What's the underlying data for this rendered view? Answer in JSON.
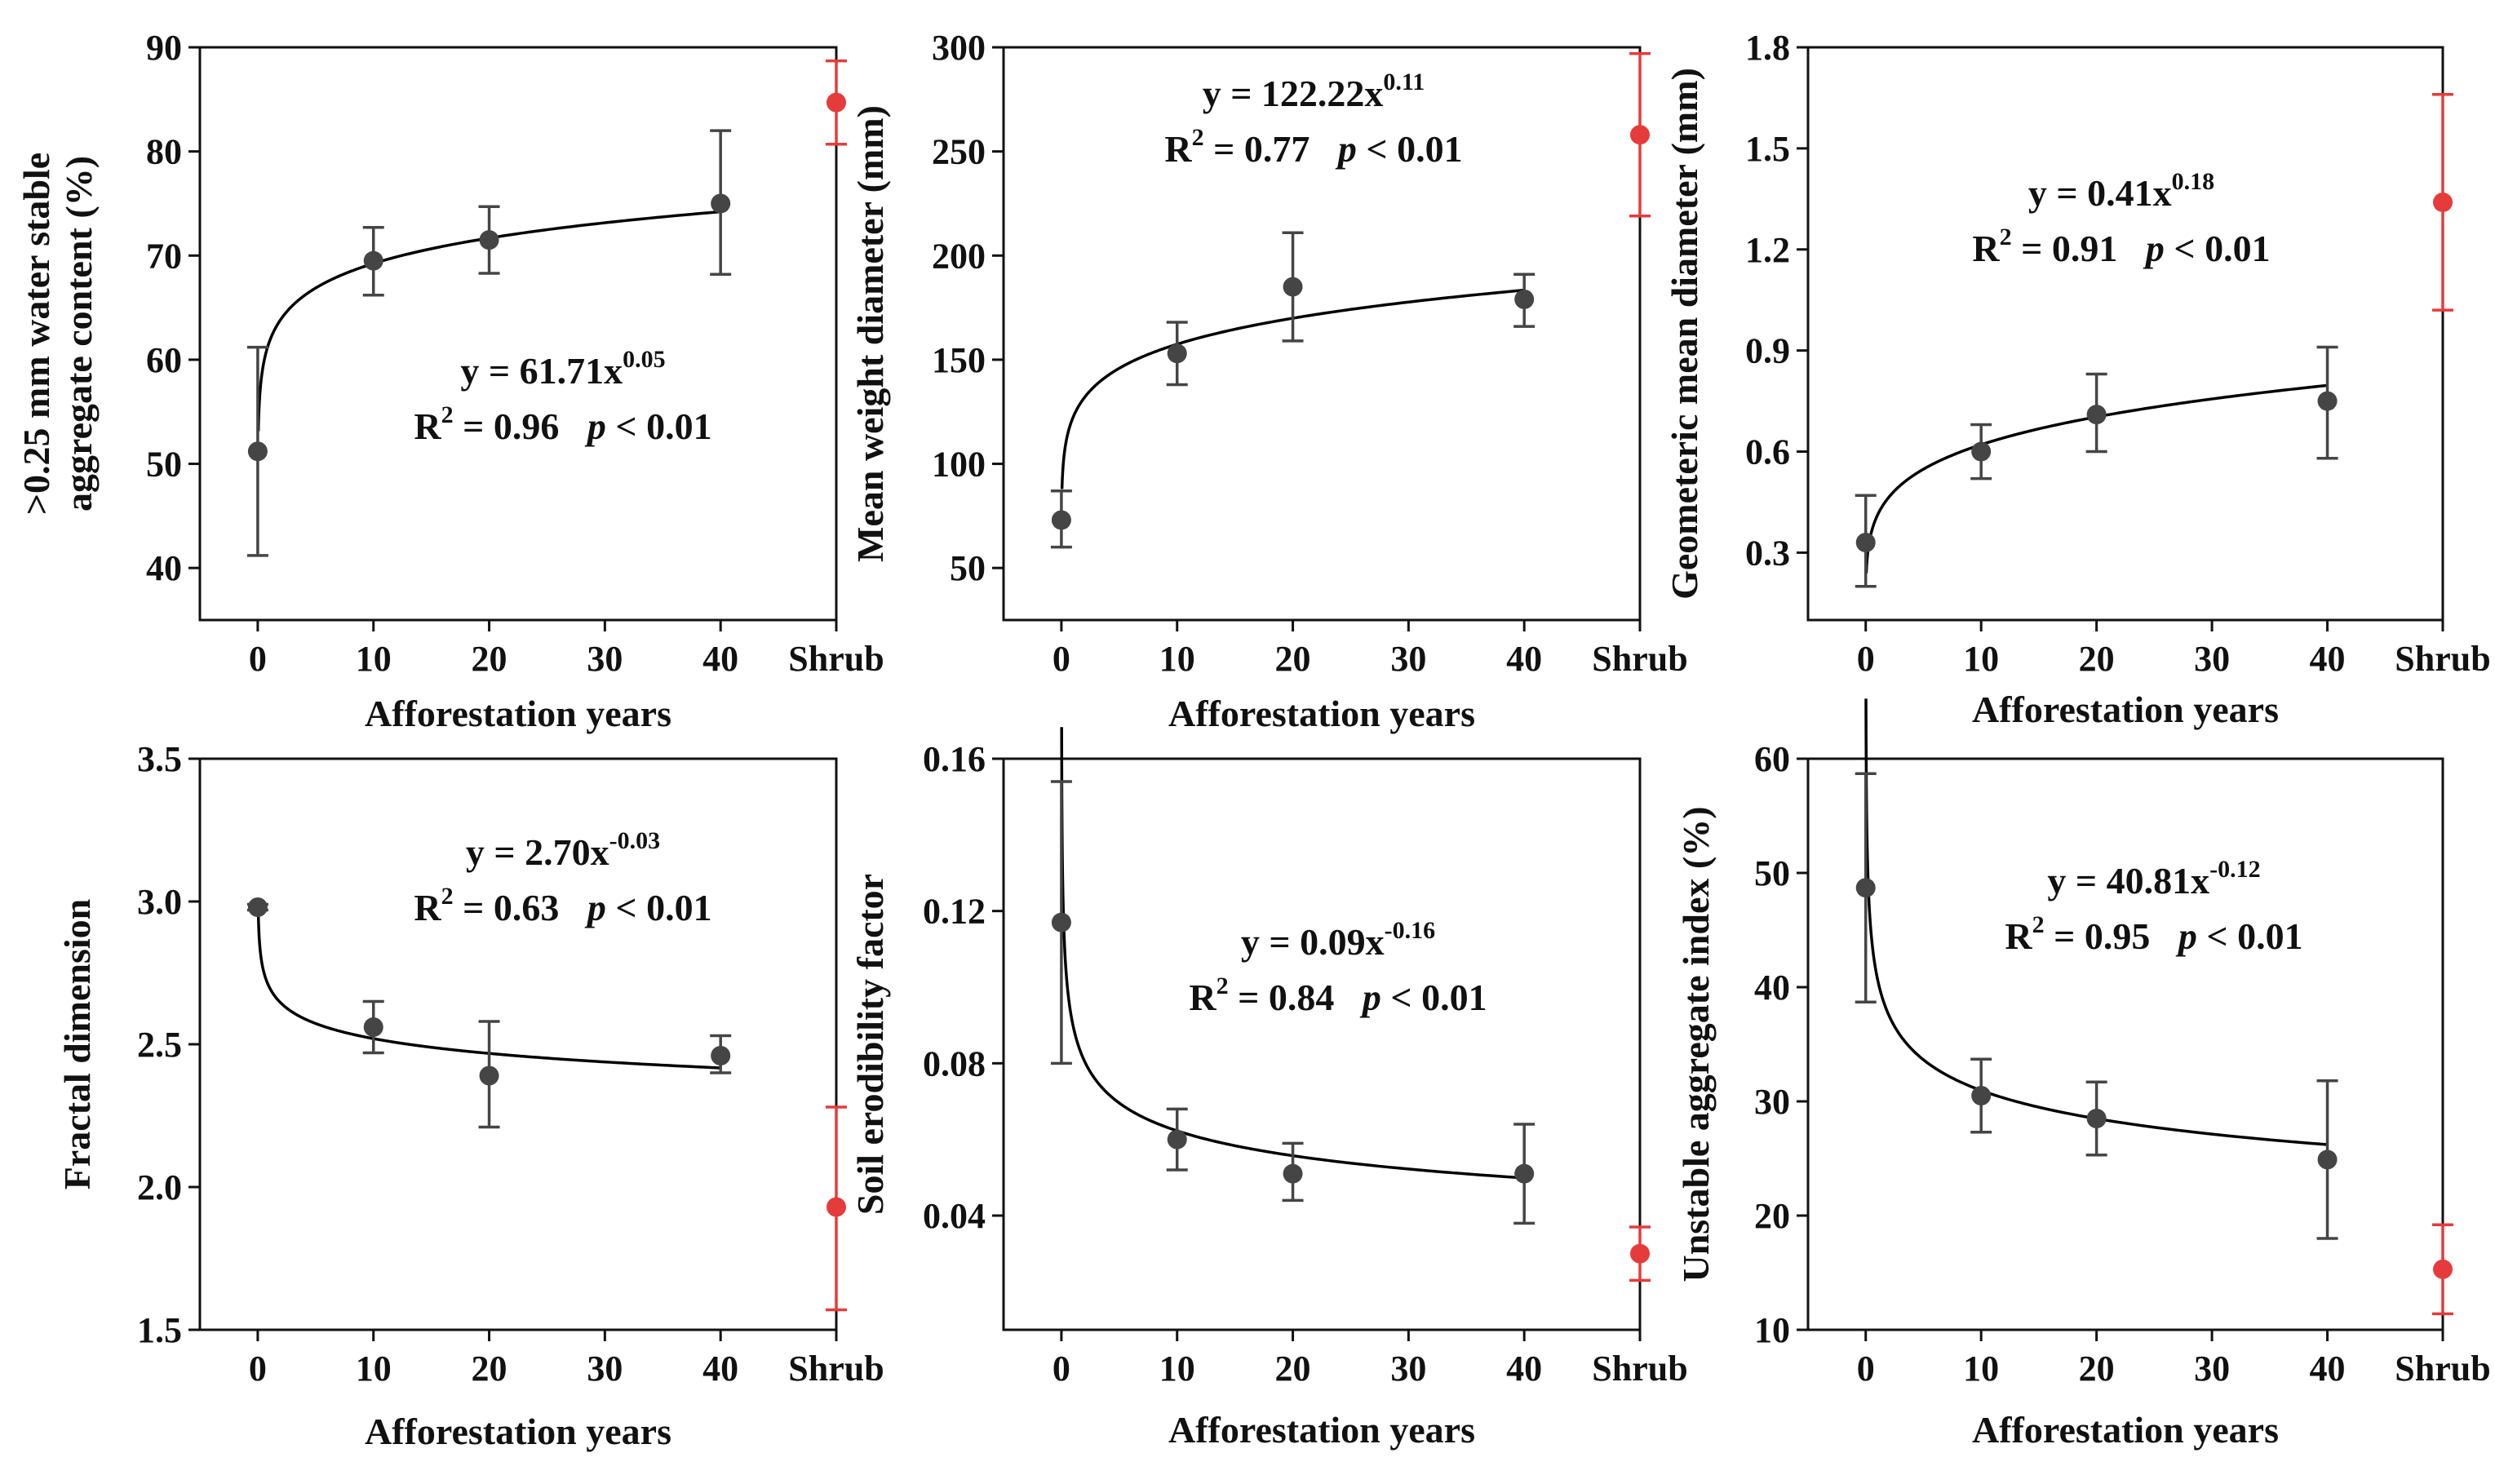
{
  "colors": {
    "afforestation": "#454545",
    "shrub": "#e63b3b",
    "curve": "#000000",
    "axis": "#111111"
  },
  "chart_data": [
    {
      "type": "scatter",
      "id": "wsa",
      "xlabel": "Afforestation years",
      "ylabel_lines": [
        ">0.25 mm water stable",
        "aggregate content (%)"
      ],
      "x_tick_labels": [
        "0",
        "10",
        "20",
        "30",
        "40",
        "Shrub"
      ],
      "xlim": [
        -5,
        50
      ],
      "ylim": [
        35,
        90
      ],
      "yticks": [
        40,
        50,
        60,
        70,
        80,
        90
      ],
      "ytick_labels": [
        "40",
        "50",
        "60",
        "70",
        "80",
        "90"
      ],
      "points": [
        {
          "x": 0,
          "y": 51.2,
          "err_low": 41.2,
          "err_high": 61.2
        },
        {
          "x": 10,
          "y": 69.5,
          "err_low": 66.2,
          "err_high": 72.7
        },
        {
          "x": 20,
          "y": 71.5,
          "err_low": 68.3,
          "err_high": 74.7
        },
        {
          "x": 40,
          "y": 75.0,
          "err_low": 68.2,
          "err_high": 82.0
        }
      ],
      "shrub": {
        "label": "Shrub",
        "x": 50,
        "y": 84.7,
        "err_low": 80.7,
        "err_high": 88.7
      },
      "fit": {
        "a": 61.71,
        "b": 0.05,
        "x_start": 0.05,
        "x_end": 40
      },
      "equation": {
        "lhs": "y = 61.71x",
        "exp": "0.05",
        "r2_prefix": "R",
        "r2_exp": "2",
        "r2_value": " = 0.96",
        "p_label": "p",
        "p_value": " < 0.01"
      }
    },
    {
      "type": "scatter",
      "id": "mwd",
      "xlabel": "Afforestation years",
      "ylabel_lines": [
        "Mean weight diameter (mm)"
      ],
      "x_tick_labels": [
        "0",
        "10",
        "20",
        "30",
        "40",
        "Shrub"
      ],
      "xlim": [
        -5,
        50
      ],
      "ylim": [
        25,
        300
      ],
      "yticks": [
        50,
        100,
        150,
        200,
        250,
        300
      ],
      "ytick_labels": [
        "50",
        "100",
        "150",
        "200",
        "250",
        "300"
      ],
      "points": [
        {
          "x": 0,
          "y": 73,
          "err_low": 60,
          "err_high": 87
        },
        {
          "x": 10,
          "y": 153,
          "err_low": 138,
          "err_high": 168
        },
        {
          "x": 20,
          "y": 185,
          "err_low": 159,
          "err_high": 211
        },
        {
          "x": 40,
          "y": 179,
          "err_low": 166,
          "err_high": 191
        }
      ],
      "shrub": {
        "label": "Shrub",
        "x": 50,
        "y": 258,
        "err_low": 219,
        "err_high": 297
      },
      "fit": {
        "a": 122.22,
        "b": 0.11,
        "x_start": 0.05,
        "x_end": 40
      },
      "equation": {
        "lhs": "y = 122.22x",
        "exp": "0.11",
        "r2_prefix": "R",
        "r2_exp": "2",
        "r2_value": " = 0.77",
        "p_label": "p",
        "p_value": " < 0.01"
      }
    },
    {
      "type": "scatter",
      "id": "gmd",
      "xlabel": "Afforestation years",
      "ylabel_lines": [
        "Geometeric mean diameter (mm)"
      ],
      "x_tick_labels": [
        "0",
        "10",
        "20",
        "30",
        "40",
        "Shrub"
      ],
      "xlim": [
        -5,
        50
      ],
      "ylim": [
        0.1,
        1.8
      ],
      "yticks": [
        0.3,
        0.6,
        0.9,
        1.2,
        1.5,
        1.8
      ],
      "ytick_labels": [
        "0.3",
        "0.6",
        "0.9",
        "1.2",
        "1.5",
        "1.8"
      ],
      "points": [
        {
          "x": 0,
          "y": 0.33,
          "err_low": 0.2,
          "err_high": 0.47
        },
        {
          "x": 10,
          "y": 0.6,
          "err_low": 0.52,
          "err_high": 0.68
        },
        {
          "x": 20,
          "y": 0.71,
          "err_low": 0.6,
          "err_high": 0.83
        },
        {
          "x": 40,
          "y": 0.75,
          "err_low": 0.58,
          "err_high": 0.91
        }
      ],
      "shrub": {
        "label": "Shrub",
        "x": 50,
        "y": 1.34,
        "err_low": 1.02,
        "err_high": 1.66
      },
      "fit": {
        "a": 0.41,
        "b": 0.18,
        "x_start": 0.05,
        "x_end": 40
      },
      "equation": {
        "lhs": "y = 0.41x",
        "exp": "0.18",
        "r2_prefix": "R",
        "r2_exp": "2",
        "r2_value": " = 0.91",
        "p_label": "p",
        "p_value": " < 0.01"
      }
    },
    {
      "type": "scatter",
      "id": "fd",
      "xlabel": "Afforestation years",
      "ylabel_lines": [
        "Fractal dimension"
      ],
      "x_tick_labels": [
        "0",
        "10",
        "20",
        "30",
        "40",
        "Shrub"
      ],
      "xlim": [
        -5,
        50
      ],
      "ylim": [
        1.5,
        3.5
      ],
      "yticks": [
        1.5,
        2.0,
        2.5,
        3.0,
        3.5
      ],
      "ytick_labels": [
        "1.5",
        "2.0",
        "2.5",
        "3.0",
        "3.5"
      ],
      "points": [
        {
          "x": 0,
          "y": 2.98,
          "err_low": 2.97,
          "err_high": 2.99
        },
        {
          "x": 10,
          "y": 2.56,
          "err_low": 2.47,
          "err_high": 2.65
        },
        {
          "x": 20,
          "y": 2.39,
          "err_low": 2.21,
          "err_high": 2.58
        },
        {
          "x": 40,
          "y": 2.46,
          "err_low": 2.4,
          "err_high": 2.53
        }
      ],
      "shrub": {
        "label": "Shrub",
        "x": 50,
        "y": 1.93,
        "err_low": 1.57,
        "err_high": 2.28
      },
      "fit": {
        "a": 2.7,
        "b": -0.03,
        "x_start": 0.05,
        "x_end": 40
      },
      "equation": {
        "lhs": "y = 2.70x",
        "exp": "-0.03",
        "r2_prefix": "R",
        "r2_exp": "2",
        "r2_value": " = 0.63",
        "p_label": "p",
        "p_value": " < 0.01"
      }
    },
    {
      "type": "scatter",
      "id": "kfactor",
      "xlabel": "Afforestation years",
      "ylabel_lines": [
        "Soil erodibility factor"
      ],
      "x_tick_labels": [
        "0",
        "10",
        "20",
        "30",
        "40",
        "Shrub"
      ],
      "xlim": [
        -5,
        50
      ],
      "ylim": [
        0.01,
        0.16
      ],
      "yticks": [
        0.04,
        0.08,
        0.12,
        0.16
      ],
      "ytick_labels": [
        "0.04",
        "0.08",
        "0.12",
        "0.16"
      ],
      "points": [
        {
          "x": 0,
          "y": 0.117,
          "err_low": 0.08,
          "err_high": 0.154
        },
        {
          "x": 10,
          "y": 0.06,
          "err_low": 0.052,
          "err_high": 0.068
        },
        {
          "x": 20,
          "y": 0.051,
          "err_low": 0.044,
          "err_high": 0.059
        },
        {
          "x": 40,
          "y": 0.051,
          "err_low": 0.038,
          "err_high": 0.064
        }
      ],
      "shrub": {
        "label": "Shrub",
        "x": 50,
        "y": 0.03,
        "err_low": 0.023,
        "err_high": 0.037
      },
      "fit": {
        "a": 0.09,
        "b": -0.16,
        "x_start": 0.02,
        "x_end": 40
      },
      "equation": {
        "lhs": "y = 0.09x",
        "exp": "-0.16",
        "r2_prefix": "R",
        "r2_exp": "2",
        "r2_value": " = 0.84",
        "p_label": "p",
        "p_value": " < 0.01"
      }
    },
    {
      "type": "scatter",
      "id": "uai",
      "xlabel": "Afforestation years",
      "ylabel_lines": [
        "Unstable aggregate index (%)"
      ],
      "x_tick_labels": [
        "0",
        "10",
        "20",
        "30",
        "40",
        "Shrub"
      ],
      "xlim": [
        -5,
        50
      ],
      "ylim": [
        10,
        60
      ],
      "yticks": [
        10,
        20,
        30,
        40,
        50,
        60
      ],
      "ytick_labels": [
        "10",
        "20",
        "30",
        "40",
        "50",
        "60"
      ],
      "points": [
        {
          "x": 0,
          "y": 48.7,
          "err_low": 38.7,
          "err_high": 58.7
        },
        {
          "x": 10,
          "y": 30.5,
          "err_low": 27.3,
          "err_high": 33.7
        },
        {
          "x": 20,
          "y": 28.5,
          "err_low": 25.3,
          "err_high": 31.7
        },
        {
          "x": 40,
          "y": 24.9,
          "err_low": 18.0,
          "err_high": 31.8
        }
      ],
      "shrub": {
        "label": "Shrub",
        "x": 50,
        "y": 15.3,
        "err_low": 11.4,
        "err_high": 19.2
      },
      "fit": {
        "a": 40.81,
        "b": -0.12,
        "x_start": 0.02,
        "x_end": 40
      },
      "equation": {
        "lhs": "y = 40.81x",
        "exp": "-0.12",
        "r2_prefix": "R",
        "r2_exp": "2",
        "r2_value": " = 0.95",
        "p_label": "p",
        "p_value": " < 0.01"
      }
    }
  ]
}
